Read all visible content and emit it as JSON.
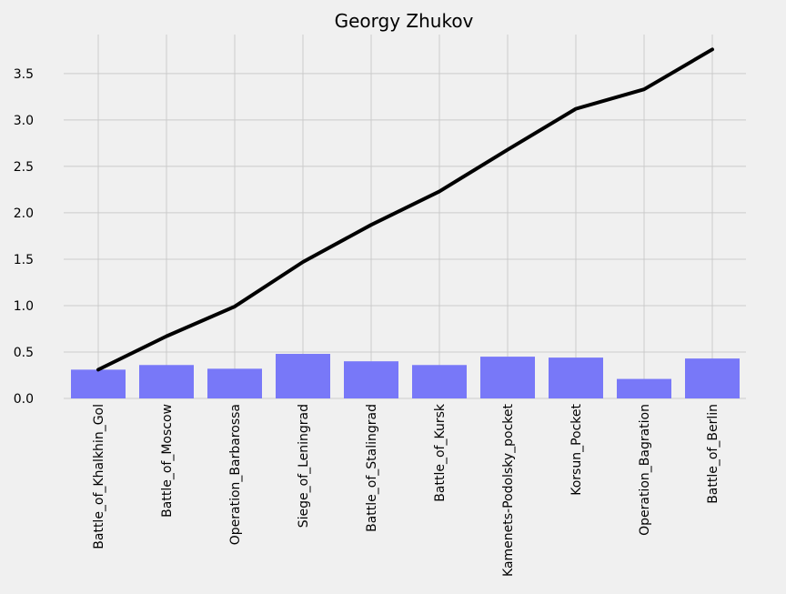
{
  "chart_data": {
    "type": "bar",
    "title": "Georgy Zhukov",
    "xlabel": "",
    "ylabel": "",
    "categories": [
      "Battle_of_Khalkhin_Gol",
      "Battle_of_Moscow",
      "Operation_Barbarossa",
      "Siege_of_Leningrad",
      "Battle_of_Stalingrad",
      "Battle_of_Kursk",
      "Kamenets-Podolsky_pocket",
      "Korsun_Pocket",
      "Operation_Bagration",
      "Battle_of_Berlin"
    ],
    "series": [
      {
        "type": "bar",
        "color": "#7878f8",
        "values": [
          0.31,
          0.36,
          0.32,
          0.48,
          0.4,
          0.36,
          0.45,
          0.44,
          0.21,
          0.43
        ]
      },
      {
        "type": "line",
        "color": "#000000",
        "values": [
          0.31,
          0.67,
          0.99,
          1.47,
          1.87,
          2.23,
          2.68,
          3.12,
          3.33,
          3.76
        ]
      }
    ],
    "ylim": [
      0,
      3.92
    ],
    "yticks": [
      "0.0",
      "0.5",
      "1.0",
      "1.5",
      "2.0",
      "2.5",
      "3.0",
      "3.5"
    ],
    "grid": true,
    "legend": "none"
  }
}
